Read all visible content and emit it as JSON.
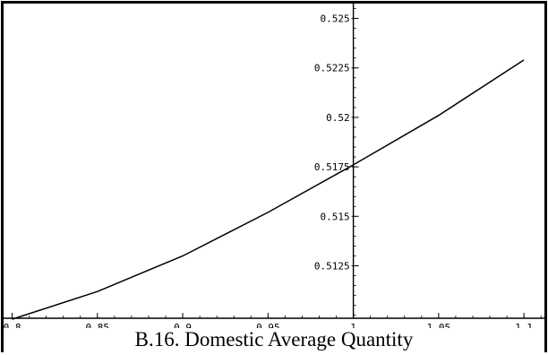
{
  "caption": "B.16.  Domestic Average Quantity",
  "chart_data": {
    "type": "line",
    "title": "",
    "xlabel": "",
    "ylabel": "",
    "xlim": [
      0.795,
      1.112
    ],
    "ylim": [
      0.50985,
      0.52575
    ],
    "axis_origin": {
      "x": 1.0,
      "y": 0.50985
    },
    "x_ticks": [
      0.8,
      0.85,
      0.9,
      0.95,
      1,
      1.05,
      1.1
    ],
    "x_tick_labels": [
      "0.8",
      "0.85",
      "0.9",
      "0.95",
      "1",
      "1.05",
      "1.1"
    ],
    "y_ticks": [
      0.5125,
      0.515,
      0.5175,
      0.52,
      0.5225,
      0.525
    ],
    "y_tick_labels": [
      "0.5125",
      "0.515",
      "0.5175",
      "0.52",
      "0.5225",
      "0.525"
    ],
    "grid": false,
    "series": [
      {
        "values": [
          [
            0.8,
            0.5098
          ],
          [
            0.85,
            0.5112
          ],
          [
            0.9,
            0.513
          ],
          [
            0.95,
            0.5152
          ],
          [
            1.0,
            0.5176
          ],
          [
            1.05,
            0.5201
          ],
          [
            1.1,
            0.5229
          ]
        ]
      }
    ]
  }
}
